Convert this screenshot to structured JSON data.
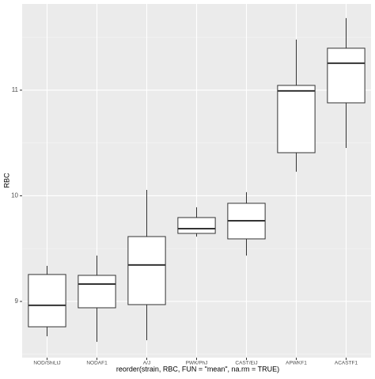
{
  "chart_data": {
    "type": "boxplot",
    "x_label": "reorder(strain, RBC, FUN = \"mean\", na.rm = TRUE)",
    "y_label": "RBC",
    "categories": [
      "NOD/ShiLtJ",
      "NODAF1",
      "A/J",
      "PWK/PhJ",
      "CAST/EiJ",
      "APWKF1",
      "ACASTF1"
    ],
    "boxes": [
      {
        "low": 8.67,
        "q1": 8.76,
        "median": 8.963,
        "q3": 9.255,
        "high": 9.337
      },
      {
        "low": 8.618,
        "q1": 8.94,
        "median": 9.165,
        "q3": 9.247,
        "high": 9.434
      },
      {
        "low": 8.633,
        "q1": 8.97,
        "median": 9.345,
        "q3": 9.614,
        "high": 10.056
      },
      {
        "low": 9.614,
        "q1": 9.644,
        "median": 9.689,
        "q3": 9.794,
        "high": 9.891
      },
      {
        "low": 9.434,
        "q1": 9.592,
        "median": 9.764,
        "q3": 9.929,
        "high": 10.034
      },
      {
        "low": 10.228,
        "q1": 10.408,
        "median": 10.993,
        "q3": 11.045,
        "high": 11.479
      },
      {
        "low": 10.453,
        "q1": 10.88,
        "median": 11.255,
        "q3": 11.397,
        "high": 11.682
      }
    ],
    "color": "#ffffff",
    "line_color": "#333333",
    "ylim": [
      8.468,
      11.816
    ],
    "yticks": [
      9,
      10,
      11
    ],
    "y_minor_ticks": [
      8.5,
      9.5,
      10.5,
      11.5
    ],
    "grid": true
  }
}
